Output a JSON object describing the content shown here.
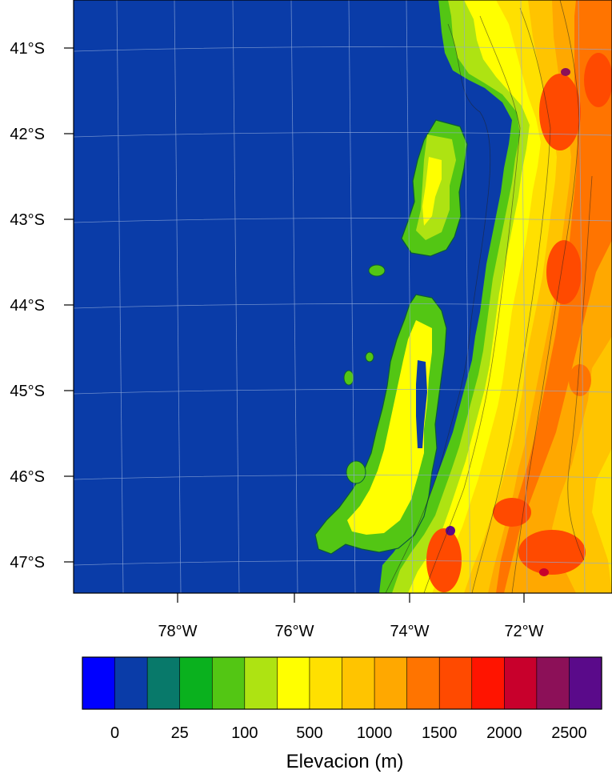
{
  "map": {
    "ocean_color": "#0a3ca8",
    "lat_labels": [
      "41°S",
      "42°S",
      "43°S",
      "44°S",
      "45°S",
      "46°S",
      "47°S"
    ],
    "lon_labels": [
      "78°W",
      "76°W",
      "74°W",
      "72°W"
    ]
  },
  "colorbar": {
    "colors": [
      "#0000ff",
      "#0a3ca8",
      "#08796a",
      "#0ab11e",
      "#53c614",
      "#aee312",
      "#ffff00",
      "#ffe000",
      "#ffc400",
      "#ffa800",
      "#ff7400",
      "#ff4a00",
      "#ff1400",
      "#c8002c",
      "#8c1058",
      "#5a0a8a"
    ],
    "labels": [
      "0",
      "25",
      "100",
      "500",
      "1000",
      "1500",
      "2000",
      "2500"
    ],
    "title": "Elevacion (m)"
  }
}
